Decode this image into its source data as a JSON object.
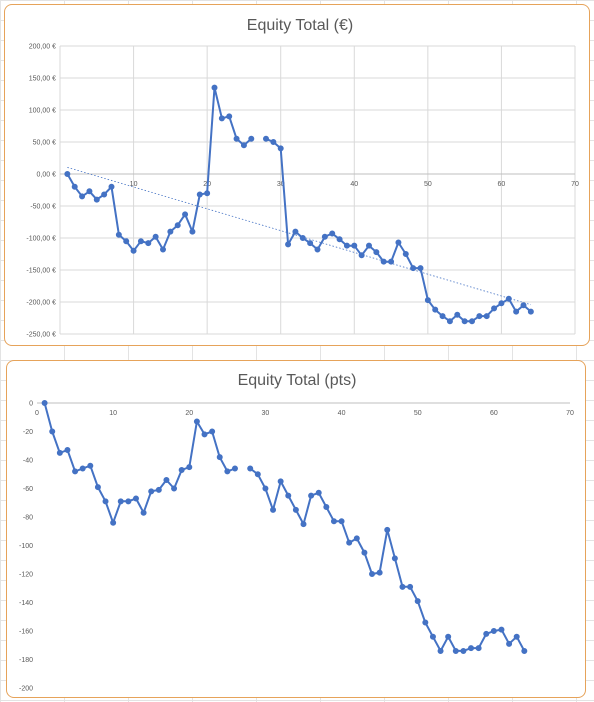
{
  "chart_data": [
    {
      "type": "line",
      "title": "Equity Total (€)",
      "xlabel": "",
      "ylabel": "",
      "xlim": [
        0,
        70
      ],
      "ylim": [
        -250,
        200
      ],
      "x_ticks": [
        "10",
        "20",
        "30",
        "40",
        "50",
        "60",
        "70"
      ],
      "x_tick_values": [
        10,
        20,
        30,
        40,
        50,
        60,
        70
      ],
      "y_ticks": [
        "200,00 €",
        "150,00 €",
        "100,00 €",
        "50,00 €",
        "0,00 €",
        "-50,00 €",
        "-100,00 €",
        "-150,00 €",
        "-200,00 €",
        "-250,00 €"
      ],
      "y_tick_values": [
        200,
        150,
        100,
        50,
        0,
        -50,
        -100,
        -150,
        -200,
        -250
      ],
      "grid": true,
      "trendline": true,
      "series": [
        {
          "x": [
            1,
            2,
            3,
            4,
            5,
            6,
            7,
            8,
            9,
            10,
            11,
            12,
            13,
            14,
            15,
            16,
            17,
            18,
            19,
            20,
            21,
            22,
            23,
            24,
            25,
            26,
            null,
            28,
            29,
            30,
            31,
            32,
            33,
            34,
            35,
            36,
            37,
            38,
            39,
            40,
            41,
            42,
            43,
            44,
            45,
            46,
            47,
            48,
            49,
            50,
            51,
            52,
            53,
            54,
            55,
            56,
            57,
            58,
            59,
            60,
            61,
            62,
            63,
            64,
            65
          ],
          "values": [
            0,
            -20,
            -35,
            -27,
            -40,
            -32,
            -20,
            -95,
            -105,
            -120,
            -105,
            -108,
            -98,
            -118,
            -90,
            -80,
            -63,
            -90,
            -32,
            -30,
            135,
            87,
            90,
            55,
            45,
            55,
            null,
            55,
            50,
            40,
            -110,
            -90,
            -100,
            -108,
            -118,
            -98,
            -93,
            -102,
            -112,
            -112,
            -127,
            -112,
            -122,
            -137,
            -137,
            -107,
            -125,
            -147,
            -147,
            -197,
            -212,
            -222,
            -230,
            -220,
            -230,
            -230,
            -222,
            -222,
            -210,
            -202,
            -195,
            -215,
            -205,
            -215,
            null
          ]
        }
      ]
    },
    {
      "type": "line",
      "title": "Equity Total (pts)",
      "xlabel": "",
      "ylabel": "",
      "xlim": [
        0,
        70
      ],
      "ylim": [
        -200,
        0
      ],
      "x_ticks": [
        "0",
        "10",
        "20",
        "30",
        "40",
        "50",
        "60",
        "70"
      ],
      "x_tick_values": [
        0,
        10,
        20,
        30,
        40,
        50,
        60,
        70
      ],
      "y_ticks": [
        "0",
        "-20",
        "-40",
        "-60",
        "-80",
        "-100",
        "-120",
        "-140",
        "-160",
        "-180",
        "-200"
      ],
      "y_tick_values": [
        0,
        -20,
        -40,
        -60,
        -80,
        -100,
        -120,
        -140,
        -160,
        -180,
        -200
      ],
      "grid": false,
      "trendline": false,
      "series": [
        {
          "x": [
            1,
            2,
            3,
            4,
            5,
            6,
            7,
            8,
            9,
            10,
            11,
            12,
            13,
            14,
            15,
            16,
            17,
            18,
            19,
            20,
            21,
            22,
            23,
            24,
            25,
            26,
            null,
            28,
            29,
            30,
            31,
            32,
            33,
            34,
            35,
            36,
            37,
            38,
            39,
            40,
            41,
            42,
            43,
            44,
            45,
            46,
            47,
            48,
            49,
            50,
            51,
            52,
            53,
            54,
            55,
            56,
            57,
            58,
            59,
            60,
            61,
            62,
            63,
            64,
            65
          ],
          "values": [
            0,
            -20,
            -35,
            -33,
            -48,
            -46,
            -44,
            -59,
            -69,
            -84,
            -69,
            -69,
            -67,
            -77,
            -62,
            -61,
            -54,
            -60,
            -47,
            -45,
            -13,
            -22,
            -20,
            -38,
            -48,
            -46,
            null,
            -46,
            -50,
            -60,
            -75,
            -55,
            -65,
            -75,
            -85,
            -65,
            -63,
            -73,
            -83,
            -83,
            -98,
            -95,
            -105,
            -120,
            -119,
            -89,
            -109,
            -129,
            -129,
            -139,
            -154,
            -164,
            -174,
            -164,
            -174,
            -174,
            -172,
            -172,
            -162,
            -160,
            -159,
            -169,
            -164,
            -174,
            null
          ]
        }
      ]
    }
  ]
}
